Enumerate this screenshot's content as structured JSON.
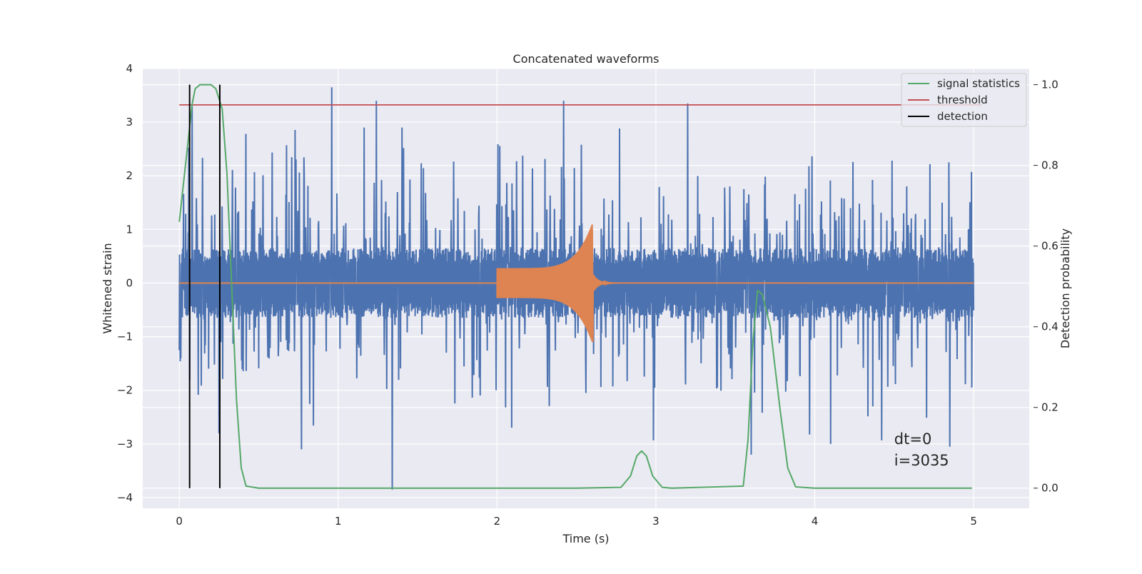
{
  "chart_data": {
    "type": "line",
    "title": "Concatenated waveforms",
    "xlabel": "Time (s)",
    "ylabel": "Whitened strain",
    "ylabel_right": "Detection probability",
    "xlim": [
      -0.23,
      5.35
    ],
    "ylim": [
      -4.2,
      4.0
    ],
    "ylim_right": [
      -0.05,
      1.04
    ],
    "x_ticks": [
      0,
      1,
      2,
      3,
      4,
      5
    ],
    "x_tick_labels": [
      "0",
      "1",
      "2",
      "3",
      "4",
      "5"
    ],
    "y_ticks": [
      4,
      3,
      2,
      1,
      0,
      -1,
      -2,
      -3,
      -4
    ],
    "y_tick_labels": [
      "4",
      "3",
      "2",
      "1",
      "0",
      "−1",
      "−2",
      "−3",
      "−4"
    ],
    "y_right_ticks": [
      1.0,
      0.8,
      0.6,
      0.4,
      0.2,
      0.0
    ],
    "y_right_tick_labels": [
      "1.0",
      "0.8",
      "0.6",
      "0.4",
      "0.2",
      "0.0"
    ],
    "grid": true,
    "legend_position": "top-right",
    "series": [
      {
        "role": "noise",
        "axis": "left",
        "color": "#4c72b0",
        "x_range": [
          0,
          5
        ],
        "core_amplitude": 0.65,
        "peaks": [
          {
            "x": 0.96,
            "y": 3.65
          },
          {
            "x": 1.24,
            "y": 3.4
          },
          {
            "x": 1.34,
            "y": -3.85
          },
          {
            "x": 2.42,
            "y": 3.4
          },
          {
            "x": 3.2,
            "y": 3.35
          },
          {
            "x": 0.08,
            "y": 3.3
          },
          {
            "x": 0.25,
            "y": -2.8
          },
          {
            "x": 0.77,
            "y": -3.1
          },
          {
            "x": 3.6,
            "y": -3.2
          },
          {
            "x": 4.85,
            "y": -3.05
          },
          {
            "x": 4.1,
            "y": -3.0
          }
        ]
      },
      {
        "role": "injected-signal",
        "axis": "left",
        "color": "#dd8452",
        "x_range": [
          0,
          5
        ],
        "chirp_start": 2.0,
        "chirp_end": 2.6,
        "chirp_peak": [
          1.0,
          -1.1
        ],
        "start_amplitude": 0.28
      },
      {
        "name": "signal statistics",
        "axis": "right",
        "color": "#55a868",
        "points": [
          [
            0.0,
            0.66
          ],
          [
            0.05,
            0.84
          ],
          [
            0.08,
            0.95
          ],
          [
            0.1,
            0.99
          ],
          [
            0.13,
            1.0
          ],
          [
            0.2,
            1.0
          ],
          [
            0.23,
            0.99
          ],
          [
            0.27,
            0.94
          ],
          [
            0.3,
            0.78
          ],
          [
            0.33,
            0.5
          ],
          [
            0.36,
            0.22
          ],
          [
            0.39,
            0.05
          ],
          [
            0.42,
            0.005
          ],
          [
            0.5,
            0.0
          ],
          [
            1.5,
            0.0
          ],
          [
            2.5,
            0.0
          ],
          [
            2.78,
            0.002
          ],
          [
            2.84,
            0.03
          ],
          [
            2.88,
            0.08
          ],
          [
            2.91,
            0.092
          ],
          [
            2.94,
            0.08
          ],
          [
            2.98,
            0.03
          ],
          [
            3.04,
            0.002
          ],
          [
            3.1,
            0.0
          ],
          [
            3.55,
            0.005
          ],
          [
            3.58,
            0.12
          ],
          [
            3.61,
            0.36
          ],
          [
            3.64,
            0.49
          ],
          [
            3.67,
            0.48
          ],
          [
            3.72,
            0.4
          ],
          [
            3.78,
            0.2
          ],
          [
            3.83,
            0.05
          ],
          [
            3.88,
            0.003
          ],
          [
            4.0,
            0.0
          ],
          [
            4.99,
            0.0
          ]
        ]
      },
      {
        "name": "threshold",
        "axis": "right",
        "color": "#c44e52",
        "x_range": [
          0,
          5.05
        ],
        "value": 0.95
      },
      {
        "name": "detection",
        "axis": "right",
        "color": "#000000",
        "x": [
          0.065,
          0.255
        ],
        "y_range": [
          0.0,
          1.0
        ]
      }
    ],
    "legend": [
      {
        "label": "signal statistics",
        "color": "#55a868"
      },
      {
        "label": "threshold",
        "color": "#c44e52"
      },
      {
        "label": "detection",
        "color": "#000000"
      }
    ],
    "annotations": {
      "line1": "dt=0",
      "line2": "i=3035",
      "x": 4.5,
      "y1": -3.0,
      "y2": -3.4
    }
  }
}
